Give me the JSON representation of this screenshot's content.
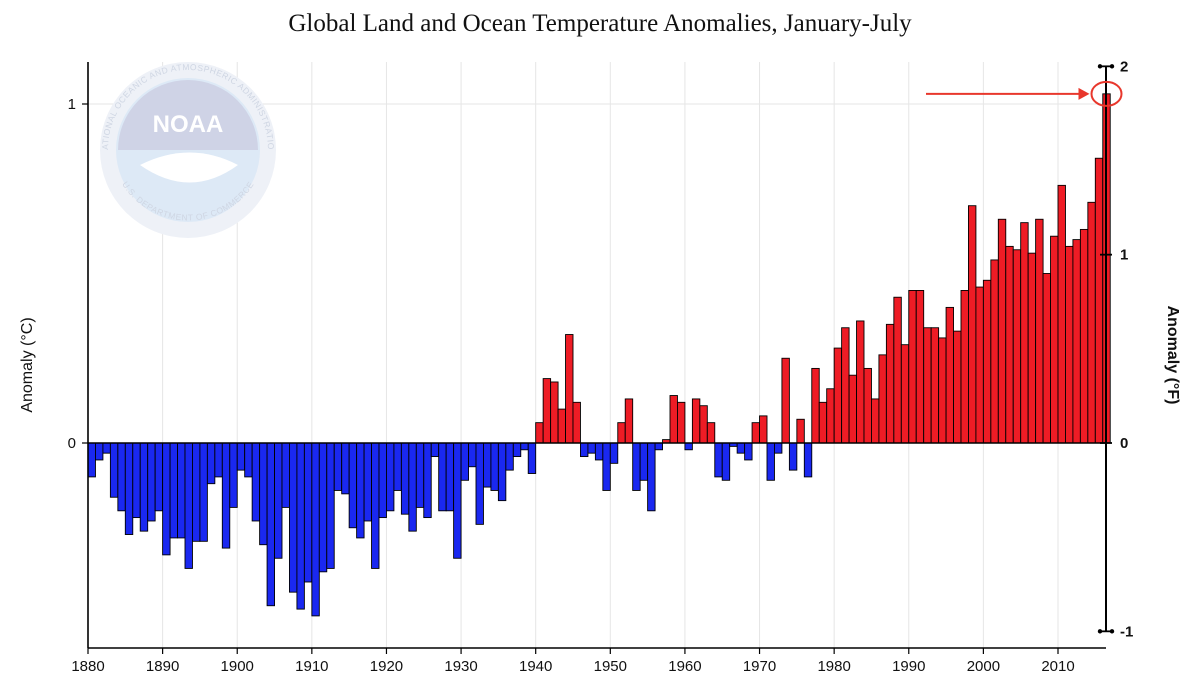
{
  "chart_data": {
    "type": "bar",
    "title": "Global Land and Ocean Temperature Anomalies, January-July",
    "ylabel_left": "Anomaly (°C)",
    "ylabel_right": "Anomaly (°F)",
    "xlabel": "",
    "x_ticks": [
      "1880",
      "1890",
      "1900",
      "1910",
      "1920",
      "1930",
      "1940",
      "1950",
      "1960",
      "1970",
      "1980",
      "1990",
      "2000",
      "2010"
    ],
    "y_ticks_left": [
      "1",
      "0"
    ],
    "y_ticks_right": [
      "2",
      "1",
      "0",
      "-1"
    ],
    "ylim_celsius": [
      -0.55,
      1.13
    ],
    "grid": true,
    "positive_color": "#ee1c25",
    "negative_color": "#1a28f0",
    "years": [
      1880,
      1881,
      1882,
      1883,
      1884,
      1885,
      1886,
      1887,
      1888,
      1889,
      1890,
      1891,
      1892,
      1893,
      1894,
      1895,
      1896,
      1897,
      1898,
      1899,
      1900,
      1901,
      1902,
      1903,
      1904,
      1905,
      1906,
      1907,
      1908,
      1909,
      1910,
      1911,
      1912,
      1913,
      1914,
      1915,
      1916,
      1917,
      1918,
      1919,
      1920,
      1921,
      1922,
      1923,
      1924,
      1925,
      1926,
      1927,
      1928,
      1929,
      1930,
      1931,
      1932,
      1933,
      1934,
      1935,
      1936,
      1937,
      1938,
      1939,
      1940,
      1941,
      1942,
      1943,
      1944,
      1945,
      1946,
      1947,
      1948,
      1949,
      1950,
      1951,
      1952,
      1953,
      1954,
      1955,
      1956,
      1957,
      1958,
      1959,
      1960,
      1961,
      1962,
      1963,
      1964,
      1965,
      1966,
      1967,
      1968,
      1969,
      1970,
      1971,
      1972,
      1973,
      1974,
      1975,
      1976,
      1977,
      1978,
      1979,
      1980,
      1981,
      1982,
      1983,
      1984,
      1985,
      1986,
      1987,
      1988,
      1989,
      1990,
      1991,
      1992,
      1993,
      1994,
      1995,
      1996,
      1997,
      1998,
      1999,
      2000,
      2001,
      2002,
      2003,
      2004,
      2005,
      2006,
      2007,
      2008,
      2009,
      2010,
      2011,
      2012,
      2013,
      2014,
      2015,
      2016
    ],
    "values": [
      -0.1,
      -0.05,
      -0.03,
      -0.16,
      -0.2,
      -0.27,
      -0.22,
      -0.26,
      -0.23,
      -0.2,
      -0.33,
      -0.28,
      -0.28,
      -0.37,
      -0.29,
      -0.29,
      -0.12,
      -0.1,
      -0.31,
      -0.19,
      -0.08,
      -0.1,
      -0.23,
      -0.3,
      -0.48,
      -0.34,
      -0.19,
      -0.44,
      -0.49,
      -0.41,
      -0.51,
      -0.38,
      -0.37,
      -0.14,
      -0.15,
      -0.25,
      -0.28,
      -0.23,
      -0.37,
      -0.22,
      -0.2,
      -0.14,
      -0.21,
      -0.26,
      -0.19,
      -0.22,
      -0.04,
      -0.2,
      -0.2,
      -0.34,
      -0.11,
      -0.07,
      -0.24,
      -0.13,
      -0.14,
      -0.17,
      -0.08,
      -0.04,
      -0.02,
      -0.09,
      0.06,
      0.19,
      0.18,
      0.1,
      0.32,
      0.12,
      -0.04,
      -0.03,
      -0.05,
      -0.14,
      -0.06,
      0.06,
      0.13,
      -0.14,
      -0.11,
      -0.2,
      -0.02,
      0.01,
      0.14,
      0.12,
      -0.02,
      0.13,
      0.11,
      0.06,
      -0.1,
      -0.11,
      -0.01,
      -0.03,
      -0.05,
      0.06,
      0.08,
      -0.11,
      -0.03,
      0.25,
      -0.08,
      0.07,
      -0.1,
      0.22,
      0.12,
      0.16,
      0.28,
      0.34,
      0.2,
      0.36,
      0.22,
      0.13,
      0.26,
      0.35,
      0.43,
      0.29,
      0.45,
      0.45,
      0.34,
      0.34,
      0.31,
      0.4,
      0.33,
      0.45,
      0.7,
      0.46,
      0.48,
      0.54,
      0.66,
      0.58,
      0.57,
      0.65,
      0.56,
      0.66,
      0.5,
      0.61,
      0.76,
      0.58,
      0.6,
      0.63,
      0.71,
      0.84,
      1.03
    ],
    "annotations": [
      {
        "type": "arrow-and-circle",
        "target_year": 2016,
        "color": "#e8372c"
      }
    ]
  },
  "watermark": {
    "name": "noaa-logo",
    "wordmark": "NOAA",
    "ring_top": "NATIONAL OCEANIC AND ATMOSPHERIC ADMINISTRATION",
    "ring_bottom": "U.S. DEPARTMENT OF COMMERCE"
  }
}
